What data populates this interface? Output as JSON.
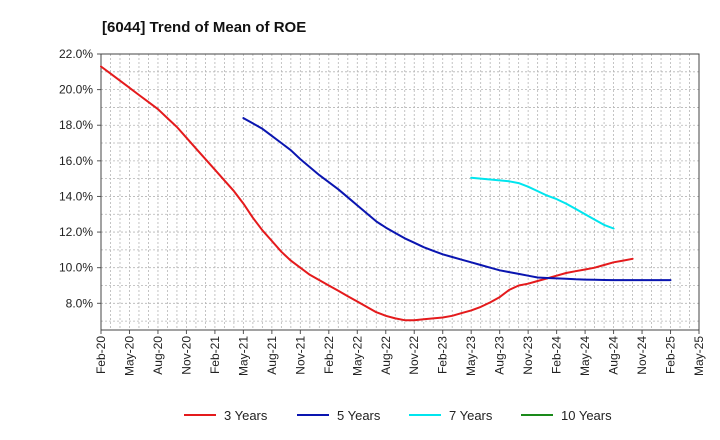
{
  "chart_data": {
    "type": "line",
    "title": "[6044]  Trend of Mean of ROE",
    "xlabel": "",
    "ylabel": "",
    "x_ticks": [
      "Feb-20",
      "May-20",
      "Aug-20",
      "Nov-20",
      "Feb-21",
      "May-21",
      "Aug-21",
      "Nov-21",
      "Feb-22",
      "May-22",
      "Aug-22",
      "Nov-22",
      "Feb-23",
      "May-23",
      "Aug-23",
      "Nov-23",
      "Feb-24",
      "May-24",
      "Aug-24",
      "Nov-24",
      "Feb-25",
      "May-25"
    ],
    "y_ticks": [
      "8.0%",
      "10.0%",
      "12.0%",
      "14.0%",
      "16.0%",
      "18.0%",
      "20.0%",
      "22.0%"
    ],
    "ylim": [
      6.5,
      22.0
    ],
    "grid": true,
    "legend_position": "bottom",
    "series": [
      {
        "name": "3 Years",
        "color": "#e41a1c",
        "points": [
          [
            "Feb-20",
            21.3
          ],
          [
            "Mar-20",
            20.9
          ],
          [
            "Apr-20",
            20.5
          ],
          [
            "May-20",
            20.1
          ],
          [
            "Jun-20",
            19.7
          ],
          [
            "Jul-20",
            19.3
          ],
          [
            "Aug-20",
            18.9
          ],
          [
            "Sep-20",
            18.4
          ],
          [
            "Oct-20",
            17.9
          ],
          [
            "Nov-20",
            17.3
          ],
          [
            "Dec-20",
            16.7
          ],
          [
            "Jan-21",
            16.1
          ],
          [
            "Feb-21",
            15.5
          ],
          [
            "Mar-21",
            14.9
          ],
          [
            "Apr-21",
            14.3
          ],
          [
            "May-21",
            13.6
          ],
          [
            "Jun-21",
            12.8
          ],
          [
            "Jul-21",
            12.1
          ],
          [
            "Aug-21",
            11.5
          ],
          [
            "Sep-21",
            10.9
          ],
          [
            "Oct-21",
            10.4
          ],
          [
            "Nov-21",
            10.0
          ],
          [
            "Dec-21",
            9.6
          ],
          [
            "Jan-22",
            9.3
          ],
          [
            "Feb-22",
            9.0
          ],
          [
            "Mar-22",
            8.7
          ],
          [
            "Apr-22",
            8.4
          ],
          [
            "May-22",
            8.1
          ],
          [
            "Jun-22",
            7.8
          ],
          [
            "Jul-22",
            7.5
          ],
          [
            "Aug-22",
            7.3
          ],
          [
            "Sep-22",
            7.15
          ],
          [
            "Oct-22",
            7.05
          ],
          [
            "Nov-22",
            7.05
          ],
          [
            "Dec-22",
            7.1
          ],
          [
            "Jan-23",
            7.15
          ],
          [
            "Feb-23",
            7.2
          ],
          [
            "Mar-23",
            7.3
          ],
          [
            "Apr-23",
            7.45
          ],
          [
            "May-23",
            7.6
          ],
          [
            "Jun-23",
            7.8
          ],
          [
            "Jul-23",
            8.05
          ],
          [
            "Aug-23",
            8.35
          ],
          [
            "Sep-23",
            8.75
          ],
          [
            "Oct-23",
            9.0
          ],
          [
            "Nov-23",
            9.1
          ],
          [
            "Dec-23",
            9.25
          ],
          [
            "Jan-24",
            9.4
          ],
          [
            "Feb-24",
            9.55
          ],
          [
            "Mar-24",
            9.7
          ],
          [
            "Apr-24",
            9.8
          ],
          [
            "May-24",
            9.9
          ],
          [
            "Jun-24",
            10.0
          ],
          [
            "Jul-24",
            10.15
          ],
          [
            "Aug-24",
            10.3
          ],
          [
            "Sep-24",
            10.4
          ],
          [
            "Oct-24",
            10.5
          ]
        ]
      },
      {
        "name": "5 Years",
        "color": "#0a15b0",
        "points": [
          [
            "May-21",
            18.4
          ],
          [
            "Jun-21",
            18.1
          ],
          [
            "Jul-21",
            17.8
          ],
          [
            "Aug-21",
            17.4
          ],
          [
            "Sep-21",
            17.0
          ],
          [
            "Oct-21",
            16.6
          ],
          [
            "Nov-21",
            16.1
          ],
          [
            "Dec-21",
            15.65
          ],
          [
            "Jan-22",
            15.2
          ],
          [
            "Feb-22",
            14.8
          ],
          [
            "Mar-22",
            14.4
          ],
          [
            "Apr-22",
            13.95
          ],
          [
            "May-22",
            13.5
          ],
          [
            "Jun-22",
            13.05
          ],
          [
            "Jul-22",
            12.6
          ],
          [
            "Aug-22",
            12.25
          ],
          [
            "Sep-22",
            11.95
          ],
          [
            "Oct-22",
            11.65
          ],
          [
            "Nov-22",
            11.4
          ],
          [
            "Dec-22",
            11.15
          ],
          [
            "Jan-23",
            10.95
          ],
          [
            "Feb-23",
            10.75
          ],
          [
            "Mar-23",
            10.6
          ],
          [
            "Apr-23",
            10.45
          ],
          [
            "May-23",
            10.3
          ],
          [
            "Jun-23",
            10.15
          ],
          [
            "Jul-23",
            10.0
          ],
          [
            "Aug-23",
            9.85
          ],
          [
            "Sep-23",
            9.75
          ],
          [
            "Oct-23",
            9.65
          ],
          [
            "Nov-23",
            9.55
          ],
          [
            "Dec-23",
            9.45
          ],
          [
            "Jan-24",
            9.42
          ],
          [
            "Feb-24",
            9.4
          ],
          [
            "Mar-24",
            9.38
          ],
          [
            "Apr-24",
            9.35
          ],
          [
            "May-24",
            9.33
          ],
          [
            "Jun-24",
            9.32
          ],
          [
            "Jul-24",
            9.31
          ],
          [
            "Aug-24",
            9.3
          ],
          [
            "Sep-24",
            9.3
          ],
          [
            "Oct-24",
            9.3
          ],
          [
            "Nov-24",
            9.3
          ],
          [
            "Dec-24",
            9.3
          ],
          [
            "Jan-25",
            9.3
          ],
          [
            "Feb-25",
            9.3
          ]
        ]
      },
      {
        "name": "7 Years",
        "color": "#00e5ee",
        "points": [
          [
            "May-23",
            15.05
          ],
          [
            "Jun-23",
            15.0
          ],
          [
            "Jul-23",
            14.95
          ],
          [
            "Aug-23",
            14.9
          ],
          [
            "Sep-23",
            14.85
          ],
          [
            "Oct-23",
            14.75
          ],
          [
            "Nov-23",
            14.55
          ],
          [
            "Dec-23",
            14.3
          ],
          [
            "Jan-24",
            14.05
          ],
          [
            "Feb-24",
            13.85
          ],
          [
            "Mar-24",
            13.6
          ],
          [
            "Apr-24",
            13.3
          ],
          [
            "May-24",
            13.0
          ],
          [
            "Jun-24",
            12.7
          ],
          [
            "Jul-24",
            12.4
          ],
          [
            "Aug-24",
            12.2
          ]
        ]
      },
      {
        "name": "10 Years",
        "color": "#1a8a1a",
        "points": []
      }
    ]
  }
}
